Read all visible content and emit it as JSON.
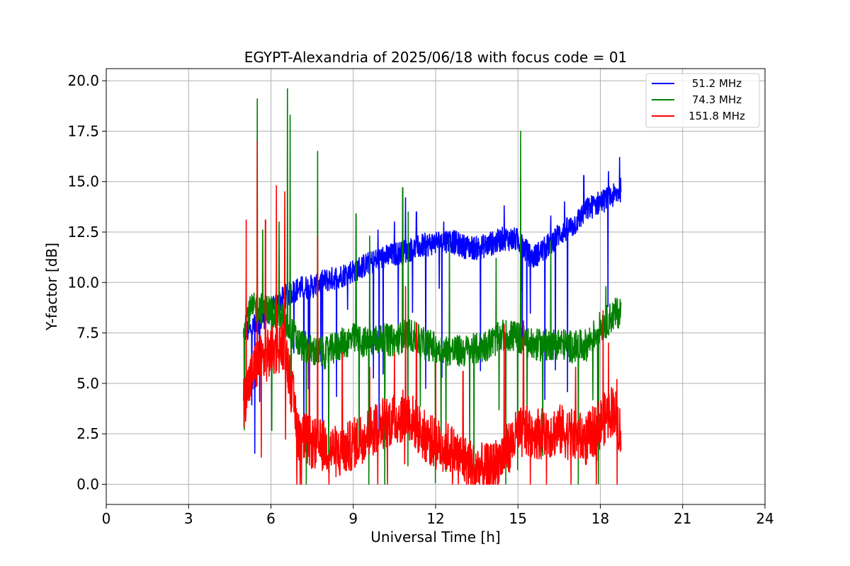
{
  "chart_data": {
    "type": "line",
    "title": "EGYPT-Alexandria of 2025/06/18 with focus code = 01",
    "xlabel": "Universal Time [h]",
    "ylabel": "Y-factor [dB]",
    "xlim": [
      0,
      24
    ],
    "ylim": [
      -1.0,
      20.6
    ],
    "xticks": [
      0,
      3,
      6,
      9,
      12,
      15,
      18,
      21,
      24
    ],
    "xtick_labels": [
      "0",
      "3",
      "6",
      "9",
      "12",
      "15",
      "18",
      "21",
      "24"
    ],
    "yticks": [
      0.0,
      2.5,
      5.0,
      7.5,
      10.0,
      12.5,
      15.0,
      17.5,
      20.0
    ],
    "ytick_labels": [
      "0.0",
      "2.5",
      "5.0",
      "7.5",
      "10.0",
      "12.5",
      "15.0",
      "17.5",
      "20.0"
    ],
    "grid": true,
    "legend_position": "top-right",
    "series": [
      {
        "name": "51.2 MHz",
        "color": "#0000ff",
        "x": [
          5.0,
          5.2,
          5.5,
          6.0,
          6.5,
          7.0,
          7.5,
          8.0,
          8.5,
          9.0,
          9.5,
          10.0,
          10.5,
          11.0,
          11.5,
          12.0,
          12.5,
          13.0,
          13.5,
          14.0,
          14.5,
          15.0,
          15.5,
          16.0,
          16.5,
          17.0,
          17.5,
          18.0,
          18.5,
          18.75
        ],
        "y": [
          7.5,
          7.6,
          8.0,
          8.6,
          9.3,
          9.7,
          9.8,
          10.1,
          10.3,
          10.6,
          10.9,
          11.2,
          11.4,
          11.6,
          11.8,
          12.0,
          12.1,
          11.8,
          11.7,
          11.9,
          12.2,
          12.1,
          11.2,
          11.7,
          12.4,
          12.8,
          13.6,
          14.0,
          14.3,
          14.6
        ],
        "noise_amplitude": 0.6
      },
      {
        "name": "74.3 MHz",
        "color": "#008000",
        "x": [
          5.0,
          5.2,
          5.5,
          6.0,
          6.5,
          7.0,
          7.5,
          8.0,
          8.5,
          9.0,
          9.5,
          10.0,
          10.5,
          11.0,
          11.5,
          12.0,
          12.5,
          13.0,
          13.5,
          14.0,
          14.5,
          15.0,
          15.5,
          16.0,
          16.5,
          17.0,
          17.5,
          18.0,
          18.5,
          18.75
        ],
        "y": [
          8.0,
          8.5,
          8.8,
          8.6,
          8.2,
          7.0,
          6.6,
          6.5,
          6.9,
          7.2,
          7.0,
          7.2,
          7.1,
          7.5,
          7.0,
          6.8,
          6.6,
          6.6,
          6.7,
          7.0,
          7.4,
          7.3,
          6.9,
          6.9,
          7.0,
          6.8,
          6.9,
          7.8,
          8.4,
          8.6
        ],
        "noise_amplitude": 0.8
      },
      {
        "name": "151.8 MHz",
        "color": "#ff0000",
        "x": [
          5.0,
          5.2,
          5.5,
          6.0,
          6.5,
          7.0,
          7.5,
          8.0,
          8.5,
          9.0,
          9.5,
          10.0,
          10.5,
          11.0,
          11.5,
          12.0,
          12.5,
          13.0,
          13.5,
          14.0,
          14.5,
          15.0,
          15.5,
          16.0,
          16.5,
          17.0,
          17.5,
          18.0,
          18.5,
          18.75
        ],
        "y": [
          4.0,
          5.0,
          6.0,
          6.5,
          7.0,
          2.5,
          2.0,
          1.9,
          1.5,
          2.0,
          2.5,
          3.0,
          3.2,
          3.5,
          2.5,
          2.0,
          1.8,
          1.2,
          0.8,
          0.7,
          1.5,
          2.5,
          2.6,
          2.5,
          2.7,
          2.4,
          2.2,
          3.0,
          3.8,
          2.5
        ],
        "noise_amplitude": 1.3
      }
    ],
    "spikes": {
      "51.2 MHz": [
        [
          5.1,
          10.2
        ],
        [
          9.9,
          12.6
        ],
        [
          10.5,
          13.0
        ],
        [
          10.9,
          14.2
        ],
        [
          11.3,
          13.5
        ],
        [
          12.3,
          13.0
        ],
        [
          14.0,
          12.5
        ],
        [
          14.5,
          13.8
        ],
        [
          16.2,
          13.3
        ],
        [
          16.7,
          14.0
        ],
        [
          17.4,
          15.3
        ],
        [
          18.3,
          15.5
        ],
        [
          18.7,
          16.2
        ]
      ],
      "74.3 MHz": [
        [
          5.5,
          19.1
        ],
        [
          5.7,
          12.6
        ],
        [
          6.3,
          13.0
        ],
        [
          6.6,
          19.6
        ],
        [
          6.7,
          18.3
        ],
        [
          7.7,
          16.5
        ],
        [
          9.1,
          13.4
        ],
        [
          9.6,
          12.3
        ],
        [
          10.8,
          14.7
        ],
        [
          11.0,
          13.5
        ],
        [
          12.5,
          12.2
        ],
        [
          14.2,
          11.2
        ],
        [
          15.1,
          17.5
        ],
        [
          16.2,
          12.1
        ],
        [
          18.2,
          9.8
        ]
      ],
      "151.8 MHz": [
        [
          5.1,
          13.1
        ],
        [
          5.5,
          17.0
        ],
        [
          5.8,
          13.1
        ],
        [
          6.2,
          14.8
        ],
        [
          6.5,
          14.5
        ],
        [
          7.4,
          7.0
        ],
        [
          7.7,
          12.3
        ],
        [
          8.6,
          6.5
        ],
        [
          9.6,
          5.8
        ],
        [
          10.5,
          6.5
        ],
        [
          10.9,
          9.8
        ],
        [
          11.3,
          8.0
        ],
        [
          12.0,
          6.0
        ],
        [
          13.0,
          5.6
        ],
        [
          14.5,
          7.9
        ],
        [
          15.2,
          8.1
        ],
        [
          17.1,
          5.8
        ],
        [
          18.1,
          8.6
        ],
        [
          18.3,
          7.0
        ],
        [
          18.6,
          5.2
        ]
      ]
    }
  }
}
